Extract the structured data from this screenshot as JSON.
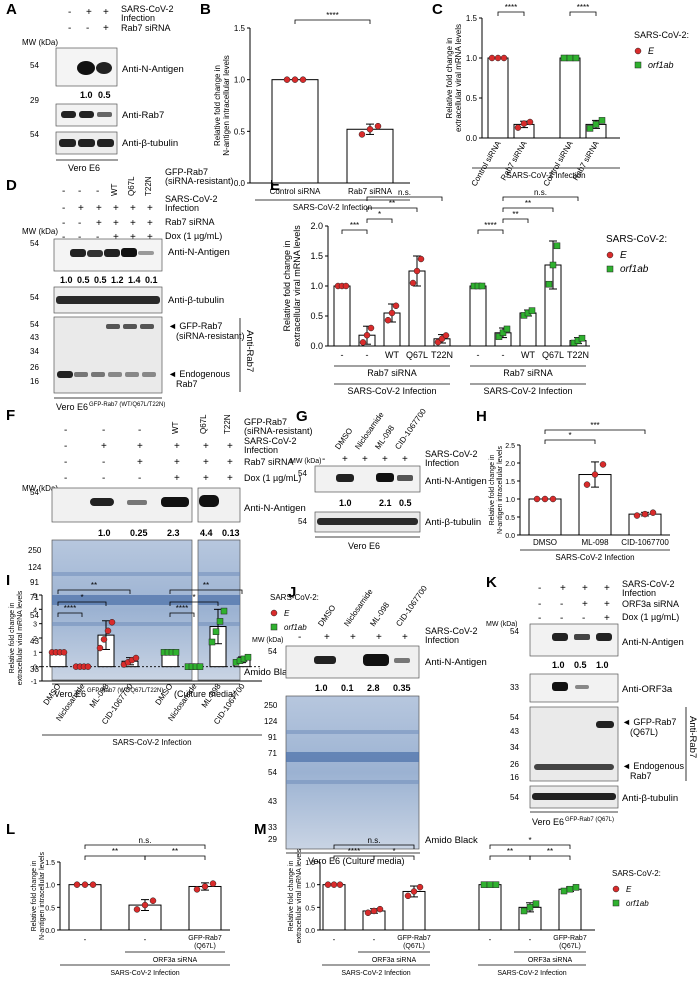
{
  "figure": {
    "panel_letters": [
      "A",
      "B",
      "C",
      "D",
      "E",
      "F",
      "G",
      "H",
      "I",
      "J",
      "K",
      "L",
      "M"
    ],
    "common": {
      "sars_cov2": "SARS-CoV-2",
      "infection": "Infection",
      "sars_infection": "SARS-CoV-2 Infection",
      "rab7_sirna": "Rab7 siRNA",
      "control_sirna": "Control siRNA",
      "dox": "Dox (1 µg/mL)",
      "mw_kda": "MW (kDa)",
      "anti_n": "Anti-N-Antigen",
      "anti_tub": "Anti-β-tubulin",
      "anti_rab7": "Anti-Rab7",
      "vero_e6": "Vero E6",
      "amido_black": "Amido Black",
      "plus": "+",
      "minus": "-",
      "legend_title": "SARS-CoV-2:",
      "legend_e": "E",
      "legend_orf": "orf1ab",
      "ylabel_intra_1": "Relative fold change in",
      "ylabel_intra_2": "N-antigen intracellular levels",
      "ylabel_extra_1": "Relative fold change in",
      "ylabel_extra_2": "extracellular viral mRNA levels"
    },
    "panelA": {
      "quant": [
        "1.0",
        "0.5"
      ],
      "mw": [
        "54",
        "29",
        "54"
      ]
    },
    "panelB": {
      "categories": [
        "Control siRNA",
        "Rab7 siRNA"
      ],
      "sig": "****",
      "ticks": [
        "0.0",
        "0.5",
        "1.0",
        "1.5"
      ]
    },
    "panelC": {
      "categories": [
        "Control siRNA",
        "Rab7 siRNA",
        "Control siRNA",
        "Rab7 siRNA"
      ],
      "sig": [
        "****",
        "****"
      ],
      "ticks": [
        "0.0",
        "0.5",
        "1.0",
        "1.5"
      ]
    },
    "panelD": {
      "gfp_label_1": "GFP-Rab7",
      "gfp_label_2": "(siRNA-resistant)",
      "lanes": [
        "WT",
        "Q67L",
        "T22N"
      ],
      "quant": [
        "1.0",
        "0.5",
        "0.5",
        "1.2",
        "1.4",
        "0.1"
      ],
      "mw": [
        "54",
        "54",
        "54",
        "43",
        "34",
        "26",
        "16"
      ],
      "arrow_gfp_1": "◄ GFP-Rab7",
      "arrow_gfp_2": "(siRNA-resistant)",
      "arrow_endo_1": "◄ Endogenous",
      "arrow_endo_2": "Rab7",
      "cell_line": "Vero E6",
      "cell_sup": "GFP-Rab7 (WT/Q67L/T22N)"
    },
    "panelE": {
      "categories": [
        "-",
        "-",
        "WT",
        "Q67L",
        "T22N"
      ],
      "sig": [
        "***",
        "*",
        "**",
        "n.s.",
        "****",
        "**",
        "**",
        "n.s."
      ],
      "ticks": [
        "0.0",
        "0.5",
        "1.0",
        "1.5",
        "2.0"
      ]
    },
    "panelF": {
      "lanes": [
        "WT",
        "Q67L",
        "T22N"
      ],
      "quant": [
        "1.0",
        "0.25",
        "2.3",
        "4.4",
        "0.13"
      ],
      "mw": [
        "250",
        "124",
        "91",
        "71",
        "54",
        "43",
        "33"
      ],
      "cell_suffix": "(Culture media)"
    },
    "panelG": {
      "lanes": [
        "DMSO",
        "Niclosamide",
        "ML-098",
        "CID-1067700"
      ],
      "quant": [
        "1.0",
        "2.1",
        "0.5"
      ]
    },
    "panelH": {
      "categories": [
        "DMSO",
        "ML-098",
        "CID-1067700"
      ],
      "sig": [
        "*",
        "***"
      ],
      "ticks": [
        "0.0",
        "0.5",
        "1.0",
        "1.5",
        "2.0",
        "2.5"
      ]
    },
    "panelI": {
      "categories": [
        "DMSO",
        "Niclosamide",
        "ML-098",
        "CID-1067700"
      ],
      "sig": [
        "**",
        "*",
        "****",
        "**",
        "*",
        "****"
      ],
      "ticks": [
        "-1",
        "0",
        "1",
        "2",
        "3",
        "4",
        "5"
      ]
    },
    "panelJ": {
      "lanes": [
        "DMSO",
        "Niclosamide",
        "ML-098",
        "CID-1067700"
      ],
      "quant": [
        "1.0",
        "0.1",
        "2.8",
        "0.35"
      ],
      "mw": [
        "54",
        "250",
        "124",
        "91",
        "71",
        "54",
        "43",
        "33",
        "29"
      ],
      "cell_line": "Vero E6 (Culture media)"
    },
    "panelK": {
      "orf3a_sirna": "ORF3a siRNA",
      "quant": [
        "1.0",
        "0.5",
        "1.0"
      ],
      "anti_orf3a": "Anti-ORF3a",
      "mw": [
        "54",
        "33",
        "54",
        "43",
        "34",
        "26",
        "16",
        "54"
      ],
      "arrow_gfp_1": "◄ GFP-Rab7",
      "arrow_gfp_2": "(Q67L)",
      "cell_sup": "GFP-Rab7 (Q67L)"
    },
    "panelL": {
      "categories": [
        "-",
        "-",
        "GFP-Rab7",
        "(Q67L)"
      ],
      "sig": [
        "**",
        "n.s.",
        "**"
      ],
      "ticks": [
        "0.0",
        "0.5",
        "1.0",
        "1.5"
      ]
    },
    "panelM": {
      "sig": [
        "n.s.",
        "****",
        "*",
        "*",
        "**",
        "**"
      ],
      "ticks": [
        "0.0",
        "0.5",
        "1.0",
        "1.5"
      ]
    }
  },
  "chart_data": [
    {
      "panel": "B",
      "type": "bar",
      "categories": [
        "Control siRNA",
        "Rab7 siRNA"
      ],
      "values": [
        1.0,
        0.52
      ],
      "errors": [
        0.0,
        0.05
      ],
      "points": [
        [
          1.0,
          1.0,
          1.0
        ],
        [
          0.47,
          0.52,
          0.55
        ]
      ],
      "ylim": [
        0,
        1.5
      ],
      "xlabel": "SARS-CoV-2 Infection",
      "ylabel": "Relative fold change in N-antigen intracellular levels"
    },
    {
      "panel": "C",
      "type": "bar",
      "categories": [
        "Control siRNA",
        "Rab7 siRNA",
        "Control siRNA",
        "Rab7 siRNA"
      ],
      "values": [
        1.0,
        0.17,
        1.0,
        0.17
      ],
      "errors": [
        0.0,
        0.04,
        0.0,
        0.05
      ],
      "series": [
        {
          "name": "E",
          "points": [
            [
              1,
              1,
              1
            ],
            [
              0.13,
              0.18,
              0.2
            ]
          ]
        },
        {
          "name": "orf1ab",
          "points": [
            [
              1,
              1,
              1
            ],
            [
              0.12,
              0.17,
              0.22
            ]
          ]
        }
      ],
      "ylim": [
        0,
        1.5
      ],
      "xlabel": "SARS-CoV-2 Infection",
      "ylabel": "Relative fold change in extracellular viral mRNA levels"
    },
    {
      "panel": "E",
      "type": "bar",
      "categories": [
        "-",
        "-",
        "WT",
        "Q67L",
        "T22N"
      ],
      "series": [
        {
          "name": "E",
          "values": [
            1.0,
            0.18,
            0.55,
            1.25,
            0.12
          ],
          "errors": [
            0.0,
            0.15,
            0.15,
            0.25,
            0.07
          ]
        },
        {
          "name": "orf1ab",
          "values": [
            1.0,
            0.22,
            0.55,
            1.35,
            0.09
          ],
          "errors": [
            0.0,
            0.08,
            0.05,
            0.4,
            0.05
          ]
        }
      ],
      "ylim": [
        0,
        2.0
      ],
      "xlabel": "SARS-CoV-2 Infection",
      "ylabel": "Relative fold change in extracellular viral mRNA levels"
    },
    {
      "panel": "H",
      "type": "bar",
      "categories": [
        "DMSO",
        "ML-098",
        "CID-1067700"
      ],
      "values": [
        1.0,
        1.68,
        0.58
      ],
      "errors": [
        0.0,
        0.35,
        0.05
      ],
      "ylim": [
        0,
        2.5
      ],
      "xlabel": "SARS-CoV-2 Infection",
      "ylabel": "Relative fold change in N-antigen intracellular levels"
    },
    {
      "panel": "I",
      "type": "bar",
      "categories": [
        "DMSO",
        "Niclosamide",
        "ML-098",
        "CID-1067700"
      ],
      "series": [
        {
          "name": "E",
          "values": [
            1.0,
            0.0,
            2.2,
            0.38
          ],
          "errors": [
            0.0,
            0.0,
            1.0,
            0.25
          ]
        },
        {
          "name": "orf1ab",
          "values": [
            1.0,
            0.0,
            2.8,
            0.48
          ],
          "errors": [
            0.0,
            0.0,
            1.2,
            0.2
          ]
        }
      ],
      "ylim": [
        -1,
        5
      ],
      "xlabel": "SARS-CoV-2 Infection",
      "ylabel": "Relative fold change in extracellular viral mRNA levels"
    },
    {
      "panel": "L",
      "type": "bar",
      "categories": [
        "-",
        "-",
        "GFP-Rab7 (Q67L)"
      ],
      "values": [
        1.0,
        0.55,
        0.96
      ],
      "errors": [
        0.0,
        0.12,
        0.08
      ],
      "ylim": [
        0,
        1.5
      ],
      "xlabel": "SARS-CoV-2 Infection",
      "ylabel": "Relative fold change in N-antigen intracellular levels"
    },
    {
      "panel": "M",
      "type": "bar",
      "categories": [
        "-",
        "-",
        "GFP-Rab7 (Q67L)"
      ],
      "series": [
        {
          "name": "E",
          "values": [
            1.0,
            0.42,
            0.85
          ],
          "errors": [
            0.0,
            0.05,
            0.12
          ]
        },
        {
          "name": "orf1ab",
          "values": [
            1.0,
            0.5,
            0.9
          ],
          "errors": [
            0.0,
            0.1,
            0.05
          ]
        }
      ],
      "ylim": [
        0,
        1.5
      ],
      "xlabel": "SARS-CoV-2 Infection",
      "ylabel": "Relative fold change in extracellular viral mRNA levels"
    }
  ]
}
